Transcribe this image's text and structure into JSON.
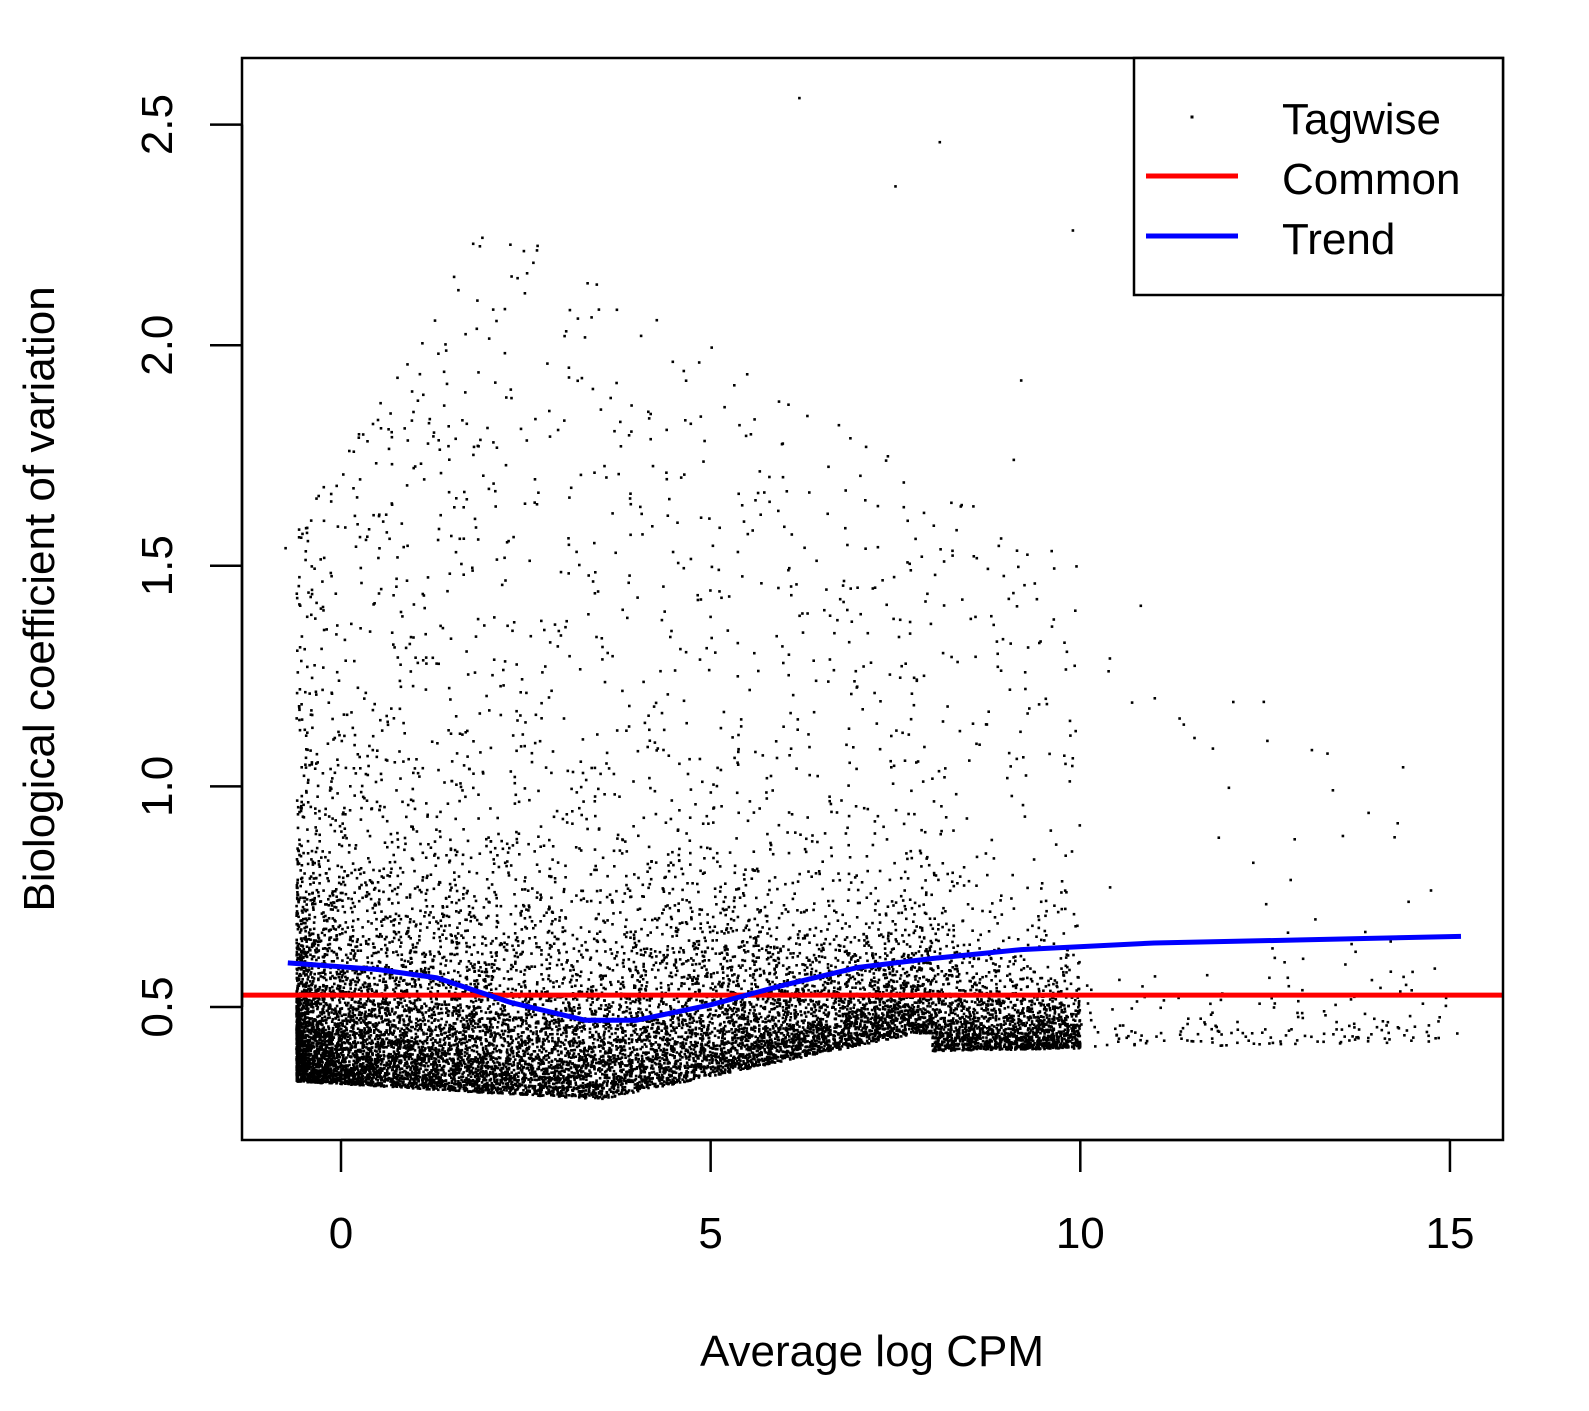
{
  "chart_data": {
    "type": "scatter",
    "title": "",
    "xlabel": "Average log CPM",
    "ylabel": "Biological coefficient of variation",
    "xlim": [
      -1.35,
      15.7
    ],
    "ylim": [
      0.2,
      2.65
    ],
    "x_ticks": [
      0,
      5,
      10,
      15
    ],
    "x_tick_labels": [
      "0",
      "5",
      "10",
      "15"
    ],
    "y_ticks": [
      0.5,
      1.0,
      1.5,
      2.0,
      2.5
    ],
    "y_tick_labels": [
      "0.5",
      "1.0",
      "1.5",
      "2.0",
      "2.5"
    ],
    "grid": false,
    "legend": {
      "position": "top-right",
      "entries": [
        {
          "label": "Tagwise",
          "kind": "point",
          "color": "#000000"
        },
        {
          "label": "Common",
          "kind": "line",
          "color": "#ff0000"
        },
        {
          "label": "Trend",
          "kind": "line",
          "color": "#0000ff"
        }
      ]
    },
    "series": [
      {
        "name": "Tagwise",
        "type": "scatter",
        "color": "#000000",
        "note_points": [
          {
            "x": 6.2,
            "y": 2.56
          },
          {
            "x": 8.1,
            "y": 2.46
          },
          {
            "x": 9.9,
            "y": 2.26
          },
          {
            "x": 7.5,
            "y": 2.36
          },
          {
            "x": 9.2,
            "y": 1.92
          },
          {
            "x": 9.1,
            "y": 1.74
          },
          {
            "x": 13.9,
            "y": 0.94
          },
          {
            "x": 12.9,
            "y": 0.88
          },
          {
            "x": 15.1,
            "y": 0.44
          },
          {
            "x": 14.2,
            "y": 0.58
          },
          {
            "x": 10.4,
            "y": 1.29
          },
          {
            "x": 10.7,
            "y": 1.19
          },
          {
            "x": -0.75,
            "y": 1.54
          },
          {
            "x": 11.4,
            "y": 1.14
          }
        ]
      },
      {
        "name": "Common",
        "type": "hline",
        "color": "#ff0000",
        "y": 0.527
      },
      {
        "name": "Trend",
        "type": "line",
        "color": "#0000ff",
        "x": [
          -0.72,
          0.5,
          1.3,
          2.3,
          3.3,
          4.0,
          5.0,
          6.0,
          7.0,
          8.0,
          9.2,
          11.0,
          13.0,
          15.15
        ],
        "y": [
          0.6,
          0.585,
          0.566,
          0.51,
          0.47,
          0.47,
          0.505,
          0.55,
          0.59,
          0.61,
          0.63,
          0.645,
          0.652,
          0.66
        ]
      }
    ]
  }
}
